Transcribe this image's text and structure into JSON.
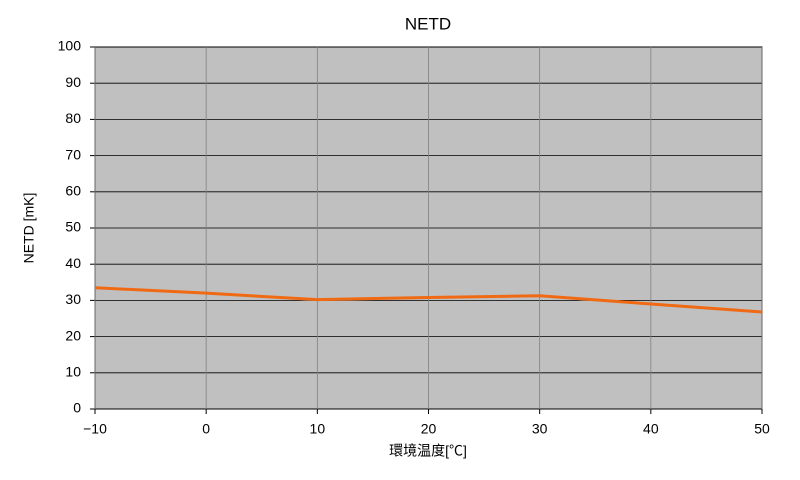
{
  "chart_data": {
    "type": "line",
    "title": "NETD",
    "x_label": "環境温度[℃]",
    "y_label": "NETD [mK]",
    "x": [
      -10,
      0,
      10,
      20,
      30,
      40,
      50
    ],
    "series": [
      {
        "name": "NETD",
        "color": "#f06a14",
        "values": [
          33.5,
          32,
          30.2,
          30.8,
          31.3,
          29,
          26.8
        ]
      }
    ],
    "xlim": [
      -10,
      50
    ],
    "xticks": [
      {
        "value": -10,
        "label": "−10"
      },
      0,
      10,
      20,
      30,
      40,
      50
    ],
    "ylim": [
      0,
      100
    ],
    "yticks": [
      0,
      10,
      20,
      30,
      40,
      50,
      60,
      70,
      80,
      90,
      100
    ],
    "grid": true,
    "plot_background": "#c0c0c0"
  }
}
